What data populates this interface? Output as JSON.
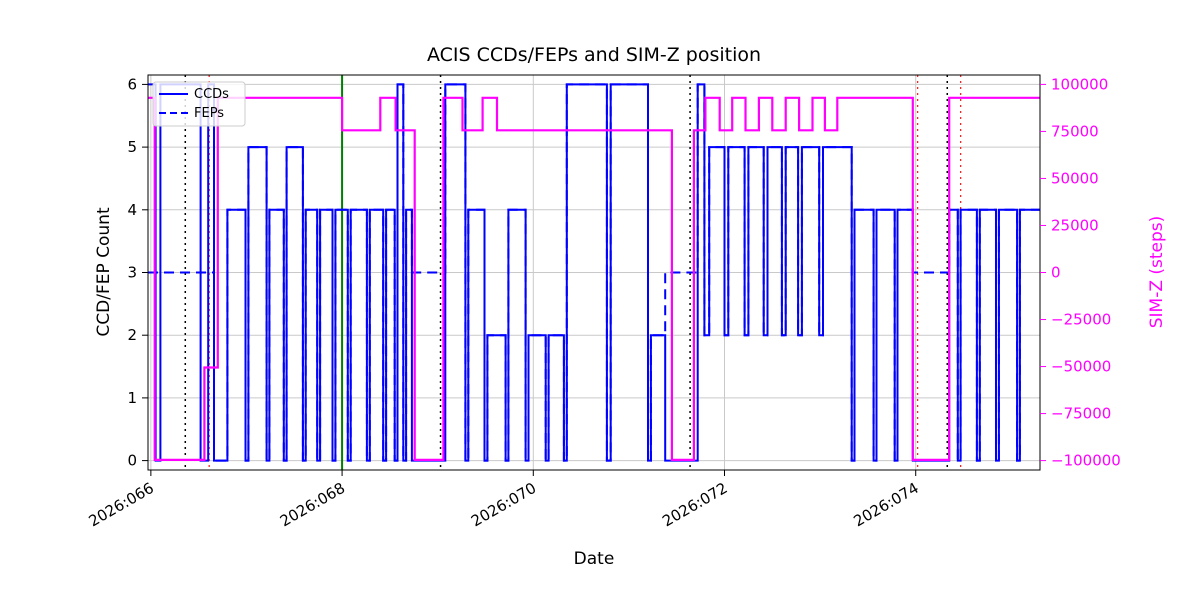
{
  "chart_data": {
    "type": "line",
    "title": "ACIS CCDs/FEPs and SIM-Z position",
    "xlabel": "Date",
    "ylabel_left": "CCD/FEP Count",
    "ylabel_right": "SIM-Z (steps)",
    "xlim": [
      65.97,
      75.3
    ],
    "ylim_left": [
      -0.15,
      6.15
    ],
    "ylim_right": [
      -105000,
      105000
    ],
    "grid": true,
    "xticks": [
      {
        "value": 66,
        "label": "2026:066"
      },
      {
        "value": 68,
        "label": "2026:068"
      },
      {
        "value": 70,
        "label": "2026:070"
      },
      {
        "value": 72,
        "label": "2026:072"
      },
      {
        "value": 74,
        "label": "2026:074"
      }
    ],
    "yticks_left": [
      {
        "value": 0,
        "label": "0"
      },
      {
        "value": 1,
        "label": "1"
      },
      {
        "value": 2,
        "label": "2"
      },
      {
        "value": 3,
        "label": "3"
      },
      {
        "value": 4,
        "label": "4"
      },
      {
        "value": 5,
        "label": "5"
      },
      {
        "value": 6,
        "label": "6"
      }
    ],
    "yticks_right": [
      {
        "value": 100000,
        "label": "100000"
      },
      {
        "value": 75000,
        "label": "75000"
      },
      {
        "value": 50000,
        "label": "50000"
      },
      {
        "value": 25000,
        "label": "25000"
      },
      {
        "value": 0,
        "label": "0"
      },
      {
        "value": -25000,
        "label": "−25000"
      },
      {
        "value": -50000,
        "label": "−50000"
      },
      {
        "value": -75000,
        "label": "−75000"
      },
      {
        "value": -100000,
        "label": "−100000"
      }
    ],
    "legend": {
      "position": "upper left",
      "items": [
        {
          "label": "CCDs",
          "style": "solid"
        },
        {
          "label": "FEPs",
          "style": "dashed"
        }
      ]
    },
    "colors": {
      "ccds": "#0000ff",
      "feps": "#0000ff",
      "simz": "#ff00ff",
      "grid": "#c9c9c9",
      "spine": "#000000",
      "vline_dotted": "#000000",
      "vline_green": "#008000",
      "vline_red": "#ff2222"
    },
    "series": {
      "ccds": {
        "name": "CCDs",
        "steps": [
          [
            65.97,
            6
          ],
          [
            66.05,
            0
          ],
          [
            66.1,
            6
          ],
          [
            66.52,
            0
          ],
          [
            66.6,
            6
          ],
          [
            66.66,
            0
          ],
          [
            66.8,
            4
          ],
          [
            66.99,
            0
          ],
          [
            67.02,
            5
          ],
          [
            67.21,
            0
          ],
          [
            67.24,
            4
          ],
          [
            67.39,
            0
          ],
          [
            67.42,
            5
          ],
          [
            67.59,
            0
          ],
          [
            67.62,
            4
          ],
          [
            67.74,
            0
          ],
          [
            67.77,
            4
          ],
          [
            67.9,
            0
          ],
          [
            67.93,
            4
          ],
          [
            68.06,
            0
          ],
          [
            68.09,
            4
          ],
          [
            68.26,
            0
          ],
          [
            68.29,
            4
          ],
          [
            68.43,
            0
          ],
          [
            68.46,
            4
          ],
          [
            68.55,
            0
          ],
          [
            68.58,
            6
          ],
          [
            68.64,
            0
          ],
          [
            68.67,
            4
          ],
          [
            68.73,
            0
          ],
          [
            69.08,
            6
          ],
          [
            69.29,
            0
          ],
          [
            69.32,
            4
          ],
          [
            69.49,
            0
          ],
          [
            69.52,
            2
          ],
          [
            69.71,
            0
          ],
          [
            69.74,
            4
          ],
          [
            69.92,
            0
          ],
          [
            69.95,
            2
          ],
          [
            70.13,
            0
          ],
          [
            70.16,
            2
          ],
          [
            70.32,
            0
          ],
          [
            70.35,
            6
          ],
          [
            70.77,
            0
          ],
          [
            70.81,
            6
          ],
          [
            71.2,
            0
          ],
          [
            71.23,
            2
          ],
          [
            71.38,
            0
          ],
          [
            71.72,
            6
          ],
          [
            71.79,
            2
          ],
          [
            71.84,
            5
          ],
          [
            72.0,
            2
          ],
          [
            72.04,
            5
          ],
          [
            72.21,
            2
          ],
          [
            72.25,
            5
          ],
          [
            72.41,
            2
          ],
          [
            72.45,
            5
          ],
          [
            72.6,
            2
          ],
          [
            72.64,
            5
          ],
          [
            72.77,
            2
          ],
          [
            72.81,
            5
          ],
          [
            72.99,
            2
          ],
          [
            73.03,
            5
          ],
          [
            73.33,
            0
          ],
          [
            73.36,
            4
          ],
          [
            73.56,
            0
          ],
          [
            73.59,
            4
          ],
          [
            73.78,
            0
          ],
          [
            73.81,
            4
          ],
          [
            73.97,
            0
          ],
          [
            74.35,
            4
          ],
          [
            74.44,
            0
          ],
          [
            74.47,
            4
          ],
          [
            74.64,
            0
          ],
          [
            74.67,
            4
          ],
          [
            74.84,
            0
          ],
          [
            74.87,
            4
          ],
          [
            75.06,
            0
          ],
          [
            75.09,
            4
          ]
        ]
      },
      "feps": {
        "name": "FEPs",
        "steps": [
          [
            65.97,
            3
          ],
          [
            66.66,
            0
          ],
          [
            66.8,
            4
          ],
          [
            66.99,
            0
          ],
          [
            67.02,
            5
          ],
          [
            67.21,
            0
          ],
          [
            67.24,
            4
          ],
          [
            67.39,
            0
          ],
          [
            67.42,
            5
          ],
          [
            67.59,
            0
          ],
          [
            67.62,
            4
          ],
          [
            67.74,
            0
          ],
          [
            67.77,
            4
          ],
          [
            67.9,
            0
          ],
          [
            67.93,
            4
          ],
          [
            68.06,
            0
          ],
          [
            68.09,
            4
          ],
          [
            68.26,
            0
          ],
          [
            68.29,
            4
          ],
          [
            68.43,
            0
          ],
          [
            68.46,
            4
          ],
          [
            68.55,
            0
          ],
          [
            68.58,
            6
          ],
          [
            68.64,
            0
          ],
          [
            68.67,
            4
          ],
          [
            68.73,
            3
          ],
          [
            69.08,
            6
          ],
          [
            69.29,
            0
          ],
          [
            69.32,
            4
          ],
          [
            69.49,
            0
          ],
          [
            69.52,
            2
          ],
          [
            69.71,
            0
          ],
          [
            69.74,
            4
          ],
          [
            69.92,
            0
          ],
          [
            69.95,
            2
          ],
          [
            70.13,
            0
          ],
          [
            70.16,
            2
          ],
          [
            70.32,
            0
          ],
          [
            70.35,
            6
          ],
          [
            70.77,
            0
          ],
          [
            70.81,
            6
          ],
          [
            71.2,
            0
          ],
          [
            71.23,
            2
          ],
          [
            71.38,
            3
          ],
          [
            71.72,
            6
          ],
          [
            71.79,
            2
          ],
          [
            71.84,
            5
          ],
          [
            72.0,
            2
          ],
          [
            72.04,
            5
          ],
          [
            72.21,
            2
          ],
          [
            72.25,
            5
          ],
          [
            72.41,
            2
          ],
          [
            72.45,
            5
          ],
          [
            72.6,
            2
          ],
          [
            72.64,
            5
          ],
          [
            72.77,
            2
          ],
          [
            72.81,
            5
          ],
          [
            72.99,
            2
          ],
          [
            73.03,
            5
          ],
          [
            73.33,
            0
          ],
          [
            73.36,
            4
          ],
          [
            73.56,
            0
          ],
          [
            73.59,
            4
          ],
          [
            73.78,
            0
          ],
          [
            73.81,
            4
          ],
          [
            73.97,
            3
          ],
          [
            74.35,
            4
          ],
          [
            74.44,
            0
          ],
          [
            74.47,
            4
          ],
          [
            74.64,
            0
          ],
          [
            74.67,
            4
          ],
          [
            74.84,
            0
          ],
          [
            74.87,
            4
          ],
          [
            75.06,
            0
          ],
          [
            75.09,
            4
          ]
        ]
      },
      "simz": {
        "name": "SIM-Z",
        "steps": [
          [
            65.97,
            92904
          ],
          [
            66.04,
            -99616
          ],
          [
            66.56,
            -50505
          ],
          [
            66.7,
            92904
          ],
          [
            68.0,
            75624
          ],
          [
            68.4,
            92904
          ],
          [
            68.56,
            75624
          ],
          [
            68.76,
            -99616
          ],
          [
            69.06,
            92904
          ],
          [
            69.26,
            75624
          ],
          [
            69.47,
            92904
          ],
          [
            69.62,
            75624
          ],
          [
            71.45,
            -99616
          ],
          [
            71.68,
            75624
          ],
          [
            71.8,
            92904
          ],
          [
            71.95,
            75624
          ],
          [
            72.08,
            92904
          ],
          [
            72.22,
            75624
          ],
          [
            72.36,
            92904
          ],
          [
            72.5,
            75624
          ],
          [
            72.64,
            92904
          ],
          [
            72.78,
            75624
          ],
          [
            72.92,
            92904
          ],
          [
            73.05,
            75624
          ],
          [
            73.18,
            92904
          ],
          [
            73.97,
            -99616
          ],
          [
            74.35,
            92904
          ]
        ]
      }
    },
    "vlines": {
      "dotted_black": [
        66.36,
        69.03,
        71.64,
        74.33
      ],
      "solid_green": [
        68.0
      ],
      "dashed_red": [
        66.61,
        74.02,
        74.47
      ]
    }
  }
}
